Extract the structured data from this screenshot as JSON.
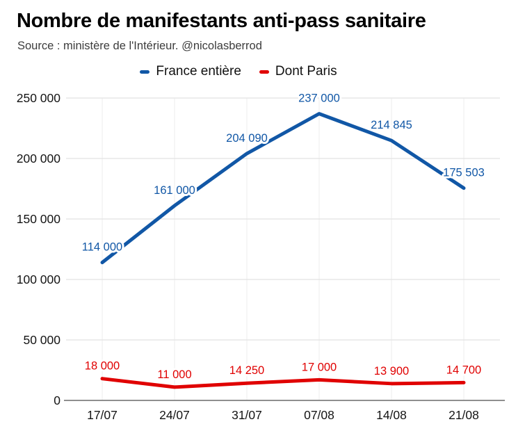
{
  "header": {
    "source": "Source : ministère de l'Intérieur. @nicolasberrod"
  },
  "chart_data": {
    "type": "line",
    "title": "Nombre de manifestants anti-pass sanitaire",
    "source": "Source : ministère de l'Intérieur. @nicolasberrod",
    "categories": [
      "17/07",
      "24/07",
      "31/07",
      "07/08",
      "14/08",
      "21/08"
    ],
    "series": [
      {
        "name": "France entière",
        "color": "#1157a6",
        "values": [
          114000,
          161000,
          204090,
          237000,
          214845,
          175503
        ]
      },
      {
        "name": "Dont Paris",
        "color": "#e00000",
        "values": [
          18000,
          11000,
          14250,
          17000,
          13900,
          14700
        ]
      }
    ],
    "xlabel": "",
    "ylabel": "",
    "ylim": [
      0,
      250000
    ],
    "ytick_step": 50000,
    "ytick_labels": [
      "0",
      "50 000",
      "100 000",
      "150 000",
      "200 000",
      "250 000"
    ],
    "grid": true,
    "legend_position": "top",
    "axis_color": "#8f8f8f",
    "grid_color": "#e2e2e2",
    "vgrid_color": "#ededed",
    "background_color": "#ffffff"
  }
}
